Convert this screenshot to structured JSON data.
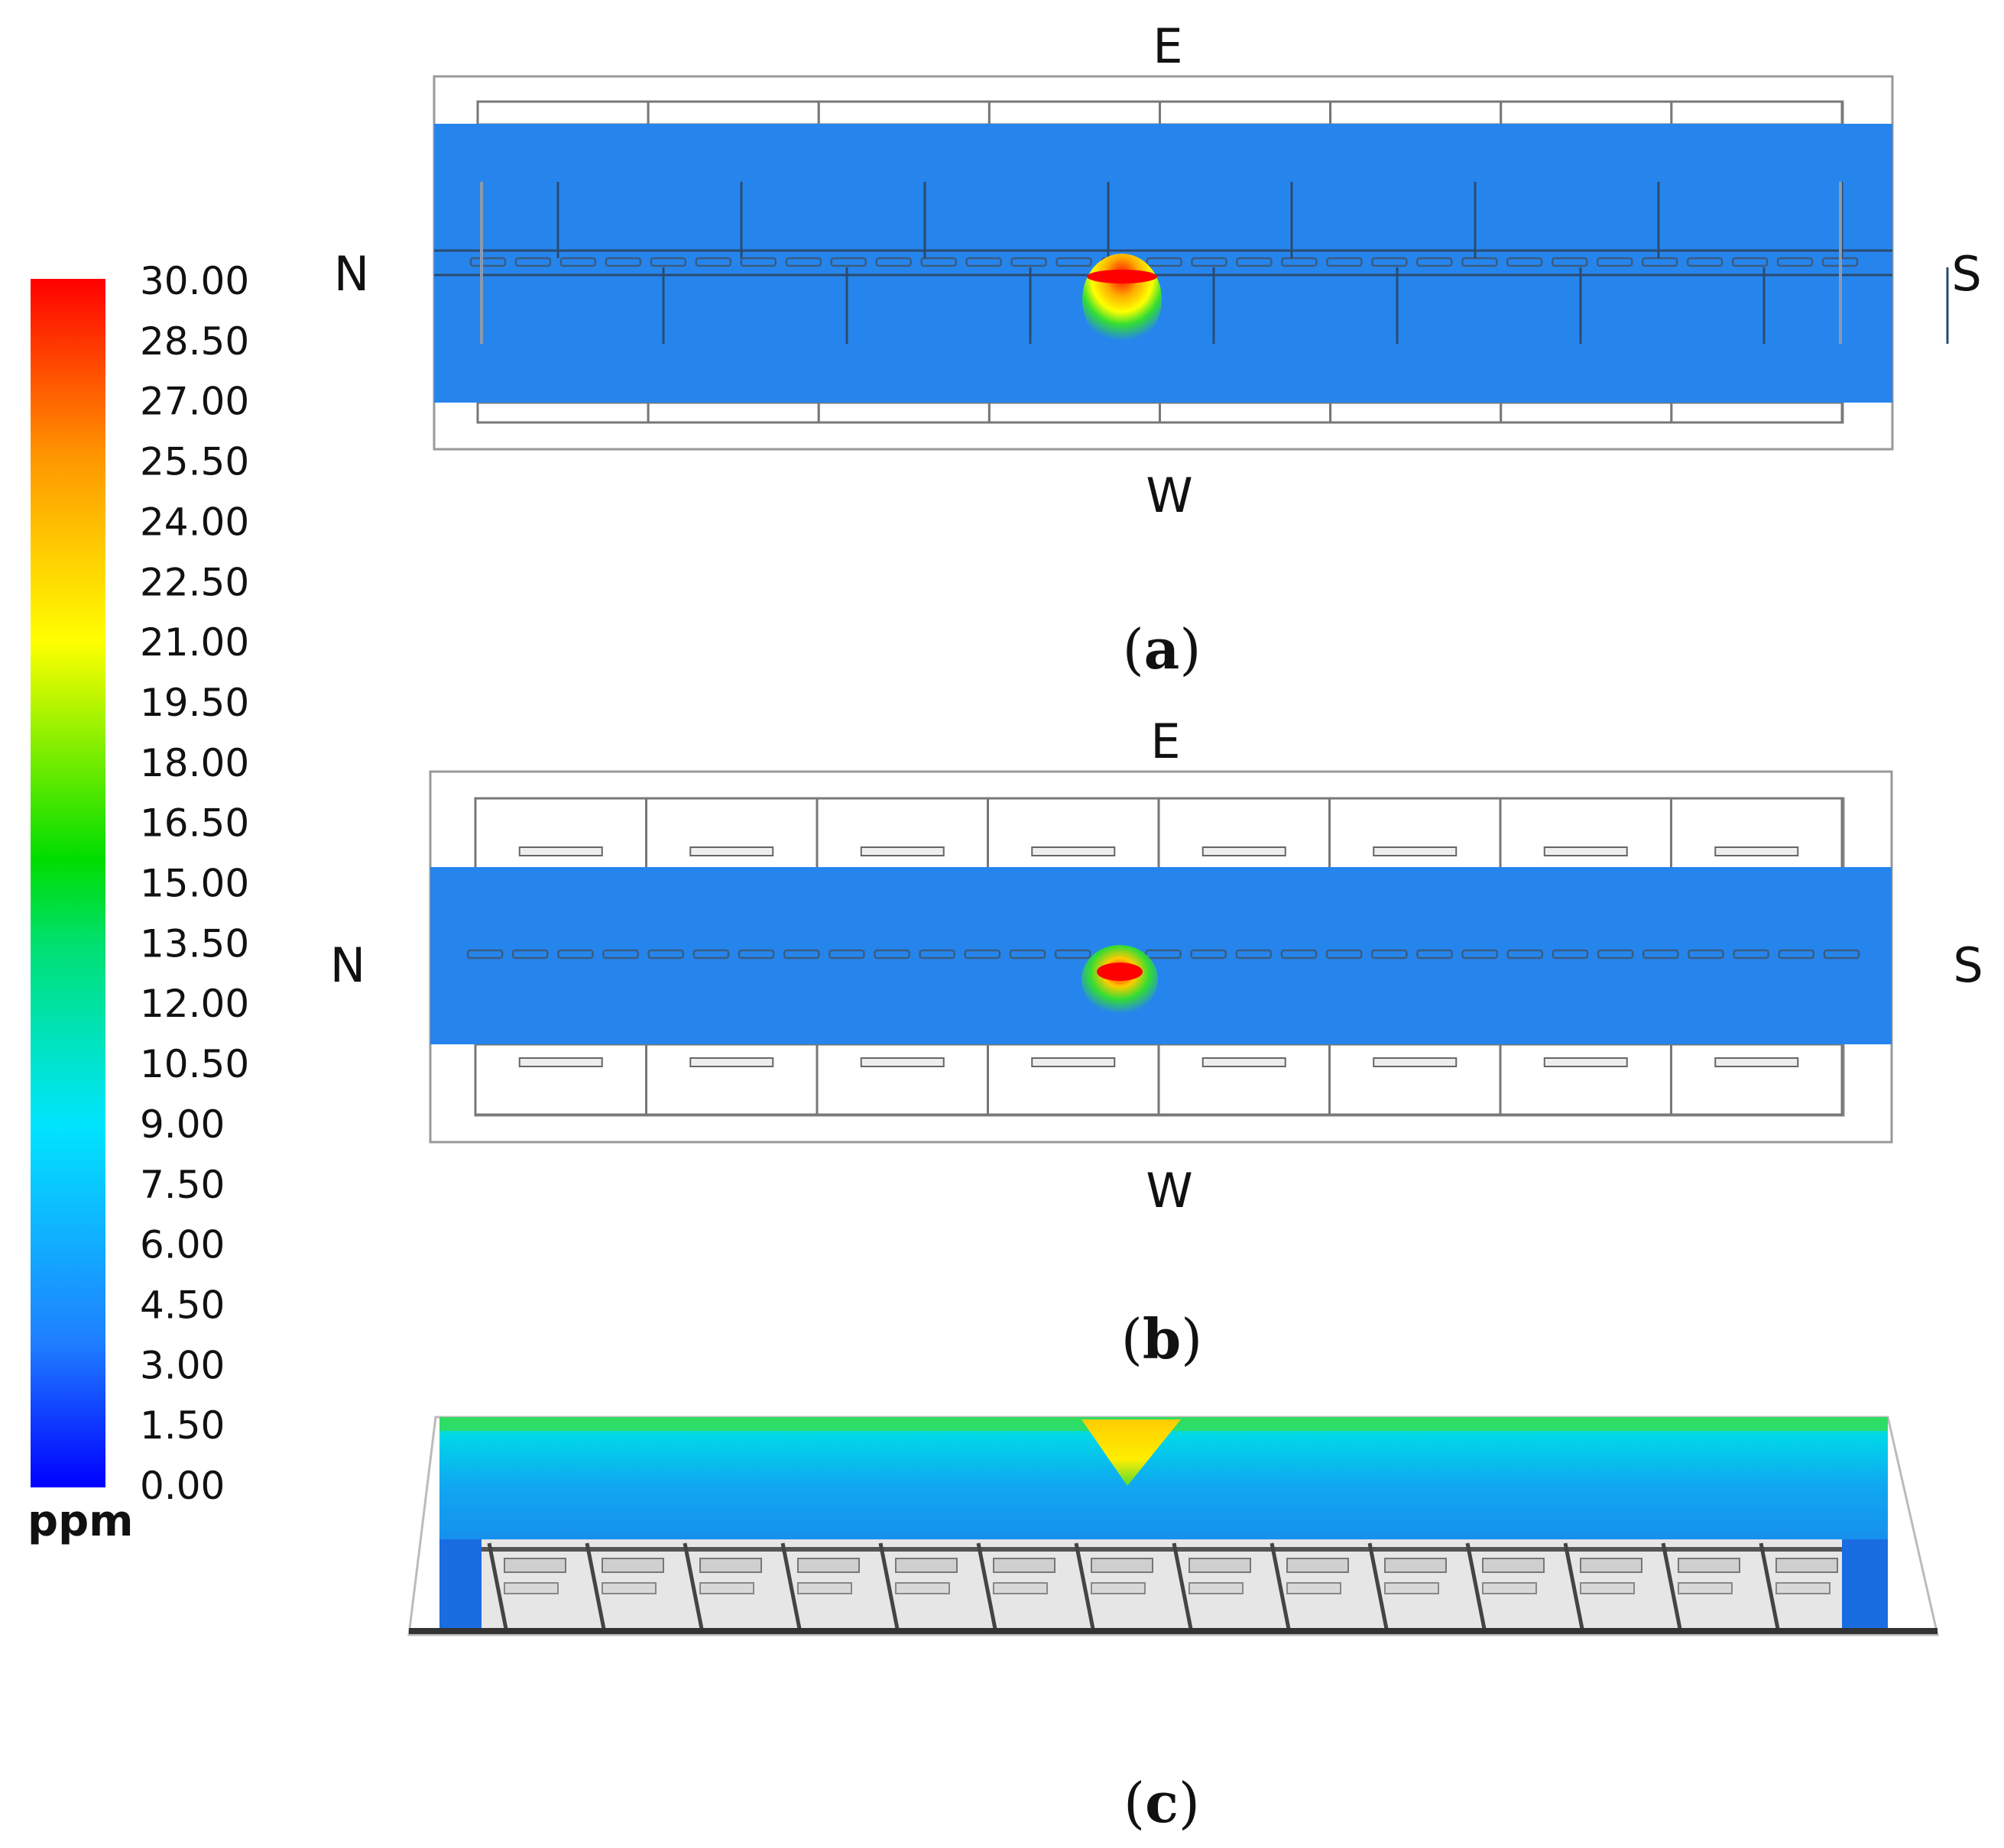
{
  "colorbar": {
    "unit": "ppm",
    "ticks": [
      "30.00",
      "28.50",
      "27.00",
      "25.50",
      "24.00",
      "22.50",
      "21.00",
      "19.50",
      "18.00",
      "16.50",
      "15.00",
      "13.50",
      "12.00",
      "10.50",
      "9.00",
      "7.50",
      "6.00",
      "4.50",
      "3.00",
      "1.50",
      "0.00"
    ],
    "min": 0,
    "max": 30,
    "colors": [
      "#0000ff",
      "#1f7fff",
      "#00e5ff",
      "#00e070",
      "#00dd00",
      "#ffff00",
      "#ff9900",
      "#ff0000"
    ]
  },
  "panels": [
    {
      "id": "a",
      "caption_letter": "a",
      "labels": {
        "top": "E",
        "bottom": "W",
        "left": "N",
        "right": "S"
      }
    },
    {
      "id": "b",
      "caption_letter": "b",
      "labels": {
        "top": "E",
        "bottom": "W",
        "left": "N",
        "right": "S"
      }
    },
    {
      "id": "c",
      "caption_letter": "c"
    }
  ],
  "caption_parens": {
    "open": "(",
    "close": ")"
  }
}
